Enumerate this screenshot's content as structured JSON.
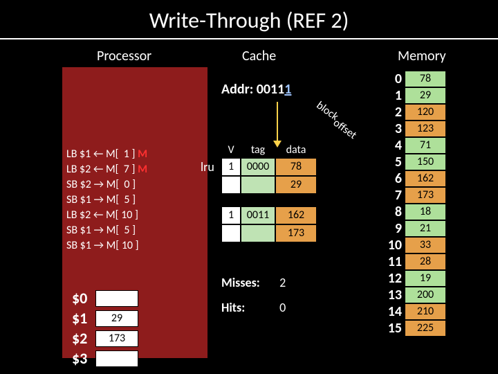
{
  "title": "Write-Through (REF 2)",
  "headers": {
    "processor": "Processor",
    "cache": "Cache",
    "memory": "Memory"
  },
  "instructions": [
    {
      "op": "LB",
      "reg": "$1",
      "dir": "←",
      "mem": "M[",
      "addr": "1",
      "close": "]",
      "miss": "M"
    },
    {
      "op": "LB",
      "reg": "$2",
      "dir": "←",
      "mem": "M[",
      "addr": "7",
      "close": "]",
      "miss": "M"
    },
    {
      "op": "SB",
      "reg": "$2",
      "dir": "→",
      "mem": "M[",
      "addr": "0",
      "close": "]",
      "miss": ""
    },
    {
      "op": "SB",
      "reg": "$1",
      "dir": "→",
      "mem": "M[",
      "addr": "5",
      "close": "]",
      "miss": ""
    },
    {
      "op": "LB",
      "reg": "$2",
      "dir": "←",
      "mem": "M[",
      "addr": "10",
      "close": "]",
      "miss": ""
    },
    {
      "op": "SB",
      "reg": "$1",
      "dir": "→",
      "mem": "M[",
      "addr": "5",
      "close": "]",
      "miss": ""
    },
    {
      "op": "SB",
      "reg": "$1",
      "dir": "→",
      "mem": "M[",
      "addr": "10",
      "close": "]",
      "miss": ""
    }
  ],
  "registers": [
    {
      "name": "$0",
      "val": ""
    },
    {
      "name": "$1",
      "val": "29"
    },
    {
      "name": "$2",
      "val": "173"
    },
    {
      "name": "$3",
      "val": ""
    }
  ],
  "addr_label": "Addr: ",
  "addr_bits": "0011",
  "addr_last": "1",
  "lru": "lru",
  "cache": {
    "headers": {
      "v": "V",
      "tag": "tag",
      "data": "data"
    },
    "lines": [
      {
        "v": "1",
        "tag": "0000",
        "data": [
          "78",
          "29"
        ]
      },
      {
        "v": "1",
        "tag": "0011",
        "data": [
          "162",
          "173"
        ]
      }
    ]
  },
  "stats": {
    "misses_label": "Misses:",
    "misses": "2",
    "hits_label": "Hits:",
    "hits": "0"
  },
  "labels": {
    "block": "block",
    "offset": "offset"
  },
  "memory_colors": [
    "#aee09a",
    "#aee09a",
    "#e6a04a",
    "#e6a04a",
    "#aee09a",
    "#aee09a",
    "#e6a04a",
    "#e6a04a",
    "#aee09a",
    "#aee09a",
    "#e6a04a",
    "#e6a04a",
    "#aee09a",
    "#aee09a",
    "#e6a04a",
    "#e6a04a"
  ],
  "memory": [
    "78",
    "29",
    "120",
    "123",
    "71",
    "150",
    "162",
    "173",
    "18",
    "21",
    "33",
    "28",
    "19",
    "200",
    "210",
    "225"
  ]
}
